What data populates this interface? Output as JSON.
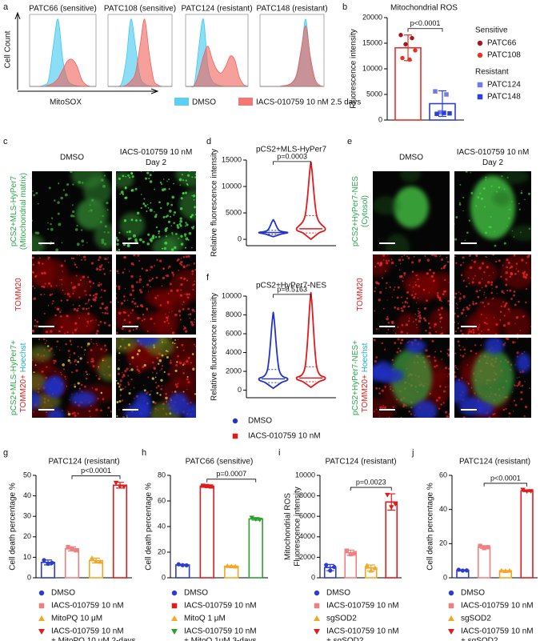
{
  "chart_data": [
    {
      "type": "density",
      "label": "a",
      "ylabel": "Cell Count",
      "xlabel": "MitoSOX",
      "x": [
        0,
        1,
        2,
        3,
        4,
        5,
        6,
        7,
        8,
        9,
        10,
        11,
        12,
        13,
        14
      ],
      "xlim": [
        0,
        14
      ],
      "ylim": [
        0,
        100
      ],
      "legend": [
        {
          "name": "DMSO",
          "color": "#3ec8ef"
        },
        {
          "name": "IACS-010759 10 nM 2.5 days",
          "color": "#f0605a"
        }
      ],
      "panels": [
        {
          "title": "PATC66 (sensitive)",
          "series": [
            {
              "values": [
                0,
                0,
                0,
                2,
                10,
                60,
                100,
                40,
                10,
                3,
                1,
                0,
                0,
                0,
                0
              ]
            },
            {
              "values": [
                0,
                0,
                0,
                0,
                2,
                5,
                12,
                25,
                38,
                40,
                30,
                10,
                2,
                0,
                0
              ]
            }
          ]
        },
        {
          "title": "PATC108 (sensitive)",
          "series": [
            {
              "values": [
                0,
                0,
                0,
                5,
                40,
                100,
                60,
                15,
                4,
                1,
                0,
                0,
                0,
                0,
                0
              ]
            },
            {
              "values": [
                0,
                0,
                0,
                0,
                2,
                8,
                20,
                60,
                100,
                50,
                10,
                2,
                0,
                0,
                0
              ]
            }
          ]
        },
        {
          "title": "PATC124 (resistant)",
          "series": [
            {
              "values": [
                0,
                0,
                5,
                60,
                100,
                30,
                8,
                3,
                1,
                0,
                0,
                0,
                0,
                0,
                0
              ]
            },
            {
              "values": [
                0,
                0,
                2,
                20,
                45,
                60,
                40,
                25,
                20,
                30,
                45,
                40,
                15,
                3,
                0
              ]
            }
          ]
        },
        {
          "title": "PATC148 (resistant)",
          "series": [
            {
              "values": [
                0,
                0,
                0,
                0,
                0,
                1,
                2,
                5,
                15,
                50,
                100,
                40,
                8,
                1,
                0
              ]
            },
            {
              "values": [
                0,
                0,
                0,
                0,
                0,
                1,
                2,
                6,
                18,
                55,
                90,
                45,
                12,
                2,
                0
              ]
            }
          ]
        }
      ]
    },
    {
      "type": "dotbar",
      "label": "b",
      "title": "Mitochondrial ROS",
      "ylabel": "Fluorescence intensity",
      "ylim": [
        0,
        20000
      ],
      "yticks": [
        0,
        5000,
        10000,
        15000,
        20000
      ],
      "p_label": "p<0.0001",
      "series": [
        {
          "name": "Sensitive",
          "color": "#e8302a",
          "marker": "circle",
          "value": 14100,
          "error": 2500,
          "lines": [
            {
              "name": "PATC66",
              "color": "#a31622",
              "points": [
                16600,
                16000,
                14800
              ]
            },
            {
              "name": "PATC108",
              "color": "#e8302a",
              "points": [
                13600,
                12100,
                11800
              ]
            }
          ]
        },
        {
          "name": "Resistant",
          "color": "#2d3fd6",
          "marker": "square",
          "value": 3200,
          "error": 2500,
          "lines": [
            {
              "name": "PATC124",
              "color": "#6c7cf0",
              "points": [
                5600,
                5000,
                1500
              ]
            },
            {
              "name": "PATC148",
              "color": "#2d3fd6",
              "points": [
                1300,
                1200,
                1400
              ]
            }
          ]
        }
      ]
    },
    {
      "type": "violin",
      "label": "d",
      "title": "pCS2+MLS-HyPer7",
      "title_color": "#2aa84a",
      "ylabel": "Relative fluorescence intensity",
      "ylim": [
        -1200,
        15000
      ],
      "yticks": [
        0,
        5000,
        10000,
        15000
      ],
      "p_label": "p=0.0003",
      "series": [
        {
          "color": "#2233cc",
          "min": 500,
          "q1": 1000,
          "median": 1300,
          "q3": 1700,
          "max": 3500
        },
        {
          "color": "#e31a1c",
          "min": 0,
          "q1": 1200,
          "median": 2000,
          "q3": 4500,
          "max": 13500
        }
      ]
    },
    {
      "type": "violin",
      "label": "f",
      "title": "pCS2+HyPer7-NES",
      "title_color": "#2aa84a",
      "ylabel": "Relative fluorescence intensity",
      "ylim": [
        -800,
        10000
      ],
      "yticks": [
        0,
        2000,
        4000,
        6000,
        8000,
        10000
      ],
      "p_label": "p=0.5163",
      "series": [
        {
          "name": "DMSO",
          "marker": "circle",
          "color": "#2233cc",
          "min": 200,
          "q1": 800,
          "median": 1200,
          "q3": 2200,
          "max": 7600
        },
        {
          "name": "IACS-010759 10 nM",
          "marker": "square",
          "color": "#e31a1c",
          "min": 300,
          "q1": 900,
          "median": 1300,
          "q3": 2500,
          "max": 9500
        }
      ]
    },
    {
      "type": "bar",
      "label": "g",
      "title": "PATC124 (resistant)",
      "ylabel": "Cell death percentage %",
      "ylim": [
        0,
        50
      ],
      "yticks": [
        0,
        10,
        20,
        30,
        40,
        50
      ],
      "p_label": "p<0.0001",
      "series": [
        {
          "name": [
            "DMSO"
          ],
          "color": "#2b3cd0",
          "marker": "circle",
          "value": 7.5,
          "error": 1.2,
          "points": [
            8.6,
            6.8,
            7.3
          ]
        },
        {
          "name": [
            "IACS-010759 10 nM"
          ],
          "color": "#f08080",
          "marker": "square",
          "value": 14.1,
          "error": 1,
          "points": [
            15,
            14,
            13.4
          ]
        },
        {
          "name": [
            "MitoPQ 10 μM"
          ],
          "color": "#f5a623",
          "marker": "triangle",
          "value": 8.4,
          "error": 1.2,
          "points": [
            9.6,
            8,
            7.8
          ]
        },
        {
          "name": [
            "IACS-010759 10 nM",
            "+ MitoPQ 10 μM 2-days"
          ],
          "color": "#e31a1c",
          "marker": "triangle-down",
          "value": 45.2,
          "error": 1.4,
          "points": [
            46.4,
            44.6,
            44.5
          ]
        }
      ]
    },
    {
      "type": "bar",
      "label": "h",
      "title": "PATC66 (sensitive)",
      "ylabel": "Cell death percentage %",
      "ylim": [
        0,
        80
      ],
      "yticks": [
        0,
        20,
        40,
        60,
        80
      ],
      "p_label": "p=0.0007",
      "series": [
        {
          "name": [
            "DMSO"
          ],
          "color": "#2b3cd0",
          "marker": "circle",
          "value": 10,
          "error": 0.5,
          "points": [
            10.5,
            9.8,
            9.7
          ]
        },
        {
          "name": [
            "IACS-010759 10 nM"
          ],
          "color": "#e31a1c",
          "marker": "square",
          "value": 71.6,
          "error": 0.4,
          "points": [
            71.9,
            71.6,
            71.3
          ]
        },
        {
          "name": [
            "MitoQ 1 μM"
          ],
          "color": "#f5a623",
          "marker": "triangle",
          "value": 9,
          "error": 0.4,
          "points": [
            9.2,
            9,
            8.8
          ]
        },
        {
          "name": [
            "IACS-010759 10 nM",
            "+ MitoQ 1μM  3-days"
          ],
          "color": "#2ca02c",
          "marker": "triangle-down",
          "value": 46,
          "error": 1,
          "points": [
            47,
            45.8,
            45.4
          ]
        }
      ]
    },
    {
      "type": "bar",
      "label": "i",
      "title": "PATC124 (resistant)",
      "ylabel": [
        "Mitochondrial ROS",
        "Fluorescence intensity"
      ],
      "ylim": [
        0,
        10000
      ],
      "yticks": [
        0,
        2000,
        4000,
        6000,
        8000,
        10000
      ],
      "p_label": "p=0.0023",
      "series": [
        {
          "name": [
            "DMSO"
          ],
          "color": "#2b3cd0",
          "marker": "circle",
          "value": 1000,
          "error": 300,
          "points": [
            1250,
            700,
            1050
          ]
        },
        {
          "name": [
            "IACS-010759 10 nM"
          ],
          "color": "#f08080",
          "marker": "square",
          "value": 2450,
          "error": 250,
          "points": [
            2650,
            2300,
            2400
          ]
        },
        {
          "name": [
            "sgSOD2"
          ],
          "color": "#f5a623",
          "marker": "triangle",
          "value": 950,
          "error": 300,
          "points": [
            1200,
            700,
            950
          ]
        },
        {
          "name": [
            "IACS-010759 10 nM",
            "+ sgSOD2"
          ],
          "color": "#e31a1c",
          "marker": "triangle-down",
          "value": 7400,
          "error": 800,
          "points": [
            8100,
            6900,
            7200
          ]
        }
      ]
    },
    {
      "type": "bar",
      "label": "j",
      "title": "PATC124 (resistant)",
      "ylabel": "Cell death percentage %",
      "ylim": [
        0,
        60
      ],
      "yticks": [
        0,
        20,
        40,
        60
      ],
      "p_label": "p<0.0001",
      "series": [
        {
          "name": [
            "DMSO"
          ],
          "color": "#2b3cd0",
          "marker": "circle",
          "value": 4.4,
          "error": 0.3,
          "points": [
            4.7,
            4.2,
            4.3
          ]
        },
        {
          "name": [
            "IACS-010759 10 nM"
          ],
          "color": "#f08080",
          "marker": "square",
          "value": 18,
          "error": 0.8,
          "points": [
            18.7,
            17.4,
            17.9
          ]
        },
        {
          "name": [
            "sgSOD2"
          ],
          "color": "#f5a623",
          "marker": "triangle",
          "value": 4.1,
          "error": 0.2,
          "points": [
            4.2,
            3.9,
            4.1
          ]
        },
        {
          "name": [
            "IACS-010759 10 nM",
            "+ sgSOD2"
          ],
          "color": "#e31a1c",
          "marker": "triangle-down",
          "value": 51,
          "error": 0.5,
          "points": [
            51.6,
            50.7,
            50.8
          ]
        }
      ]
    }
  ],
  "image_panels": [
    {
      "label": "c",
      "columns": [
        [
          "DMSO"
        ],
        [
          "IACS-010759 10 nM",
          "Day 2"
        ]
      ],
      "rows": [
        [
          [
            {
              "text": "pCS2+MLS-HyPer7",
              "color": "#2aa84a"
            }
          ],
          [
            {
              "text": "(Mitochondrial matrix)",
              "color": "#2aa84a"
            }
          ]
        ],
        [
          [
            {
              "text": "TOMM20",
              "color": "#e02020"
            }
          ]
        ],
        [
          [
            {
              "text": "pCS2+MLS-HyPer7+",
              "color": "#2aa84a"
            }
          ],
          [
            {
              "text": "TOMM20+",
              "color": "#e02020"
            },
            {
              "text": " Hoechst",
              "color": "#20b0c8"
            }
          ]
        ]
      ]
    },
    {
      "label": "e",
      "columns": [
        [
          "DMSO"
        ],
        [
          "IACS-010759 10 nM",
          "Day 2"
        ]
      ],
      "rows": [
        [
          [
            {
              "text": "pCS2+HyPer7-NES",
              "color": "#2aa84a"
            }
          ],
          [
            {
              "text": "(Cytosol)",
              "color": "#2aa84a"
            }
          ]
        ],
        [
          [
            {
              "text": "TOMM20",
              "color": "#e02020"
            }
          ]
        ],
        [
          [
            {
              "text": "pCS2+HyPer7-NES+",
              "color": "#2aa84a"
            }
          ],
          [
            {
              "text": "TOMM20+",
              "color": "#e02020"
            },
            {
              "text": " Hoechst",
              "color": "#20b0c8"
            }
          ]
        ]
      ]
    }
  ]
}
